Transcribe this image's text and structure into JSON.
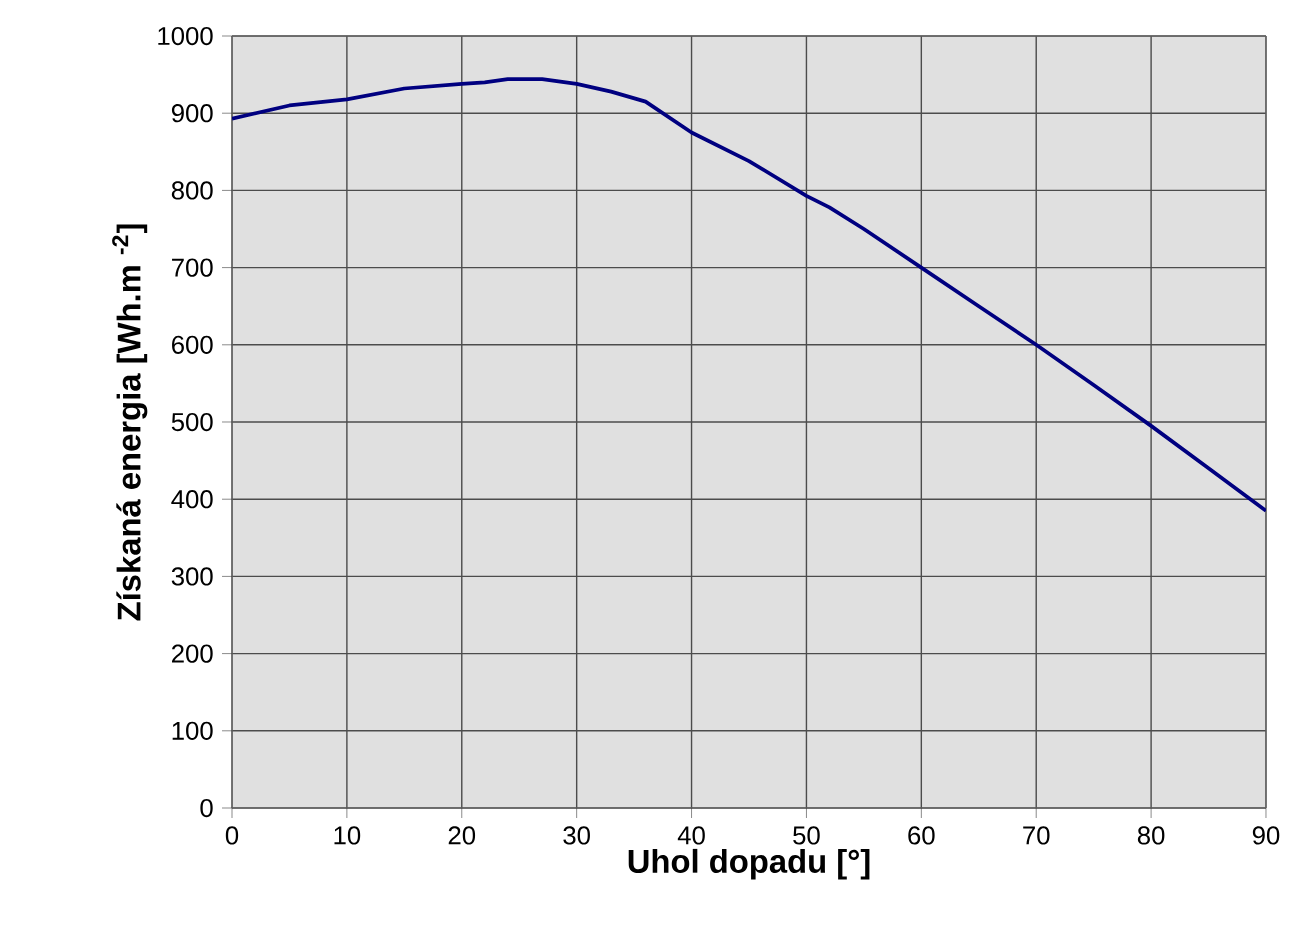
{
  "chart_data": {
    "type": "line",
    "xlabel": "Uhol dopadu [°]",
    "ylabel": "Získaná energia [Wh.m $^{-2}$]",
    "xlim": [
      0,
      90
    ],
    "ylim": [
      0,
      1000
    ],
    "xticks": [
      0,
      10,
      20,
      30,
      40,
      50,
      60,
      70,
      80,
      90
    ],
    "yticks": [
      0,
      100,
      200,
      300,
      400,
      500,
      600,
      700,
      800,
      900,
      1000
    ],
    "grid": true,
    "series": [
      {
        "color": "#000080",
        "x": [
          0,
          5,
          10,
          15,
          20,
          22,
          24,
          27,
          30,
          33,
          36,
          40,
          45,
          50,
          52,
          55,
          60,
          65,
          70,
          75,
          80,
          85,
          90
        ],
        "values": [
          893,
          910,
          918,
          932,
          938,
          940,
          944,
          944,
          938,
          928,
          915,
          875,
          838,
          793,
          778,
          750,
          700,
          650,
          600,
          548,
          495,
          440,
          385
        ]
      }
    ]
  }
}
